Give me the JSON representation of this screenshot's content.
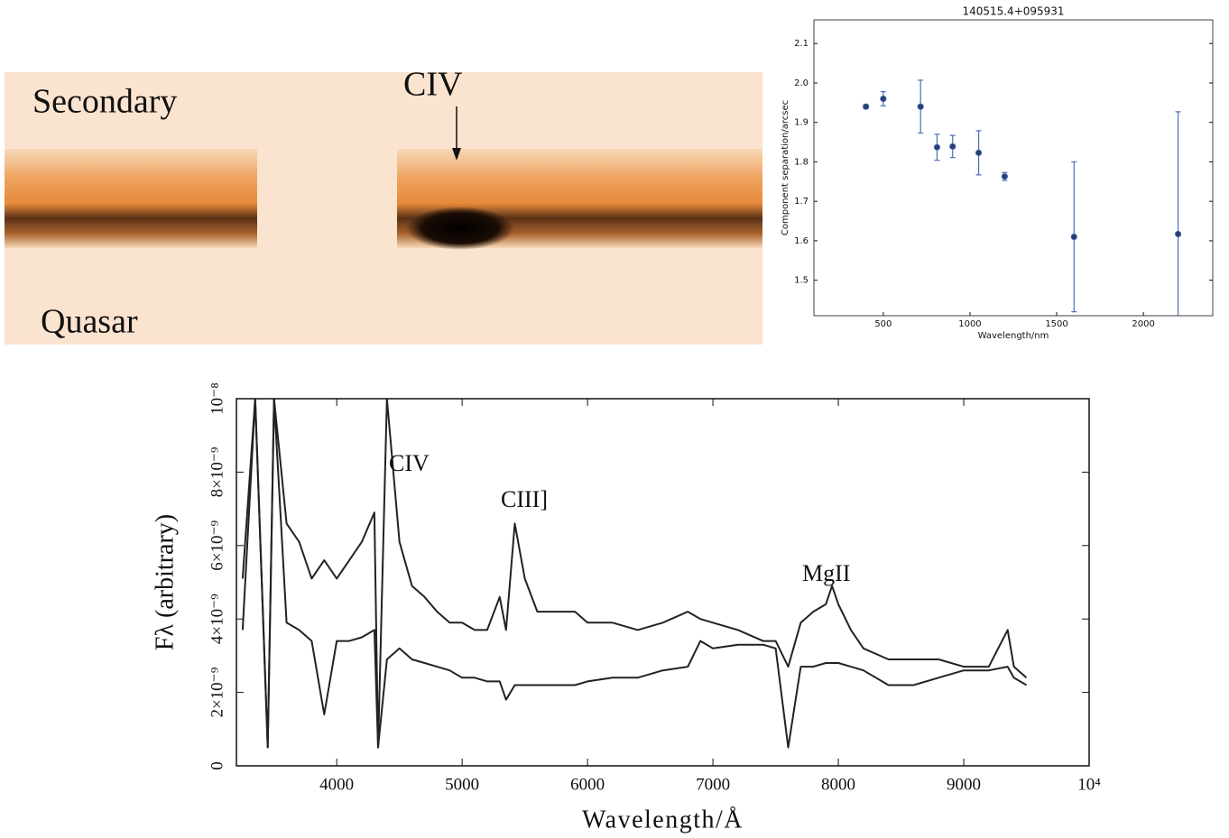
{
  "image_panel": {
    "labels": [
      "Secondary",
      "CIV",
      "Quasar"
    ]
  },
  "chart_data": [
    {
      "type": "scatter",
      "title": "140515.4+095931",
      "xlabel": "Wavelength/nm",
      "ylabel": "Component separation/arcsec",
      "x": [
        400,
        500,
        715,
        810,
        900,
        1050,
        1200,
        1600,
        2200
      ],
      "values": [
        1.94,
        1.96,
        1.94,
        1.837,
        1.839,
        1.823,
        1.763,
        1.61,
        1.617
      ],
      "errors": [
        0.005,
        0.018,
        0.067,
        0.033,
        0.028,
        0.056,
        0.01,
        0.19,
        0.31
      ],
      "color": "#4a6fb5",
      "marker_color": "#2b3f6e",
      "xlim": [
        100,
        2400
      ],
      "xticks": [
        500,
        1000,
        1500,
        2000
      ],
      "ylim": [
        1.41,
        2.16
      ],
      "yticks": [
        1.5,
        1.6,
        1.7,
        1.8,
        1.9,
        {
          "value": 2,
          "label": "2.0"
        },
        2.1
      ]
    },
    {
      "type": "line",
      "xlabel": "Wavelength/Å",
      "ylabel": "Fλ (arbitrary)",
      "annotations": [
        "CIV",
        "CIII]",
        "MgII"
      ],
      "x": [
        3250,
        3350,
        3450,
        3500,
        3600,
        3700,
        3800,
        3900,
        4000,
        4100,
        4200,
        4300,
        4330,
        4400,
        4500,
        4600,
        4700,
        4800,
        4900,
        5000,
        5100,
        5200,
        5300,
        5350,
        5420,
        5500,
        5600,
        5700,
        5800,
        5900,
        6000,
        6200,
        6400,
        6600,
        6800,
        6900,
        7000,
        7200,
        7400,
        7500,
        7600,
        7700,
        7800,
        7900,
        7950,
        8000,
        8100,
        8200,
        8400,
        8600,
        8800,
        9000,
        9200,
        9350,
        9400,
        9500
      ],
      "series": [
        {
          "color": "#222222",
          "values": [
            5.1e-09,
            1e-08,
            5e-10,
            1e-08,
            6.6e-09,
            6.1e-09,
            5.1e-09,
            5.6e-09,
            5.1e-09,
            5.6e-09,
            6.1e-09,
            6.9e-09,
            5e-10,
            1e-08,
            6.1e-09,
            4.9e-09,
            4.6e-09,
            4.2e-09,
            3.9e-09,
            3.9e-09,
            3.7e-09,
            3.7e-09,
            4.6e-09,
            3.7e-09,
            6.6e-09,
            5.1e-09,
            4.2e-09,
            4.2e-09,
            4.2e-09,
            4.2e-09,
            3.9e-09,
            3.9e-09,
            3.7e-09,
            3.9e-09,
            4.2e-09,
            4e-09,
            3.9e-09,
            3.7e-09,
            3.4e-09,
            3.4e-09,
            2.7e-09,
            3.9e-09,
            4.2e-09,
            4.4e-09,
            4.9e-09,
            4.4e-09,
            3.7e-09,
            3.2e-09,
            2.9e-09,
            2.9e-09,
            2.9e-09,
            2.7e-09,
            2.7e-09,
            3.7e-09,
            2.7e-09,
            2.4e-09
          ]
        },
        {
          "color": "#222222",
          "values": [
            3.7e-09,
            1e-08,
            5e-10,
            1e-08,
            3.9e-09,
            3.7e-09,
            3.4e-09,
            1.4e-09,
            3.4e-09,
            3.4e-09,
            3.5e-09,
            3.7e-09,
            5e-10,
            2.9e-09,
            3.2e-09,
            2.9e-09,
            2.8e-09,
            2.7e-09,
            2.6e-09,
            2.4e-09,
            2.4e-09,
            2.3e-09,
            2.3e-09,
            1.8e-09,
            2.2e-09,
            2.2e-09,
            2.2e-09,
            2.2e-09,
            2.2e-09,
            2.2e-09,
            2.3e-09,
            2.4e-09,
            2.4e-09,
            2.6e-09,
            2.7e-09,
            3.4e-09,
            3.2e-09,
            3.3e-09,
            3.3e-09,
            3.2e-09,
            5e-10,
            2.7e-09,
            2.7e-09,
            2.8e-09,
            2.8e-09,
            2.8e-09,
            2.7e-09,
            2.6e-09,
            2.2e-09,
            2.2e-09,
            2.4e-09,
            2.6e-09,
            2.6e-09,
            2.7e-09,
            2.4e-09,
            2.2e-09
          ]
        }
      ],
      "xlim": [
        3200,
        10000
      ],
      "xticks": [
        4000,
        5000,
        6000,
        7000,
        8000,
        9000,
        {
          "value": 10000,
          "label": "10⁴"
        }
      ],
      "ylim": [
        0,
        1e-08
      ],
      "yticks": [
        0,
        {
          "value": 2e-09,
          "label": "2×10⁻⁹"
        },
        {
          "value": 4e-09,
          "label": "4×10⁻⁹"
        },
        {
          "value": 6e-09,
          "label": "6×10⁻⁹"
        },
        {
          "value": 8e-09,
          "label": "8×10⁻⁹"
        },
        {
          "value": 1e-08,
          "label": "10⁻⁸"
        }
      ]
    }
  ]
}
